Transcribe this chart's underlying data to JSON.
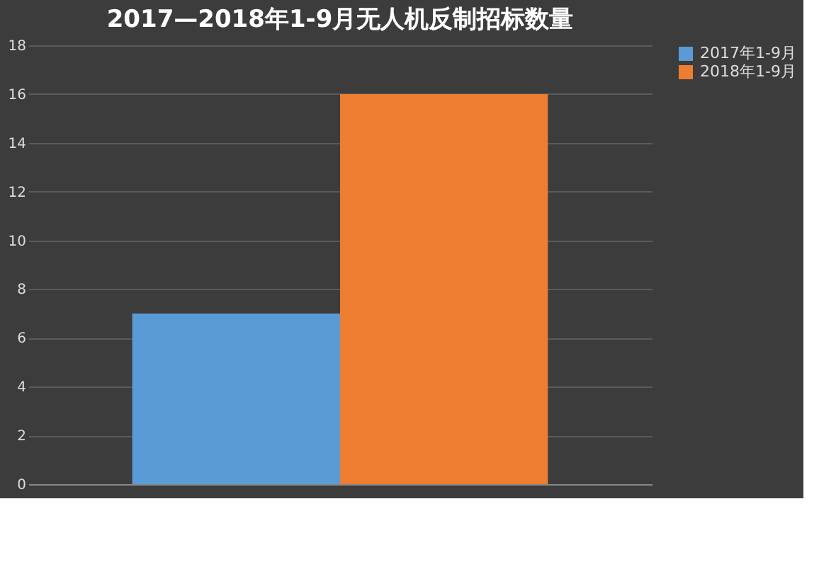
{
  "chart_data": {
    "type": "bar",
    "title": "2017—2018年1-9月无人机反制招标数量",
    "categories": [
      null
    ],
    "series": [
      {
        "name": "2017年1-9月",
        "color": "#5b9bd5",
        "values": [
          7
        ]
      },
      {
        "name": "2018年1-9月",
        "color": "#ed7d31",
        "values": [
          16
        ]
      }
    ],
    "ylim": [
      0,
      18
    ],
    "yticks": [
      0,
      2,
      4,
      6,
      8,
      10,
      12,
      14,
      16,
      18
    ],
    "grid": "y",
    "legend": "right",
    "tick_labels": "y"
  }
}
